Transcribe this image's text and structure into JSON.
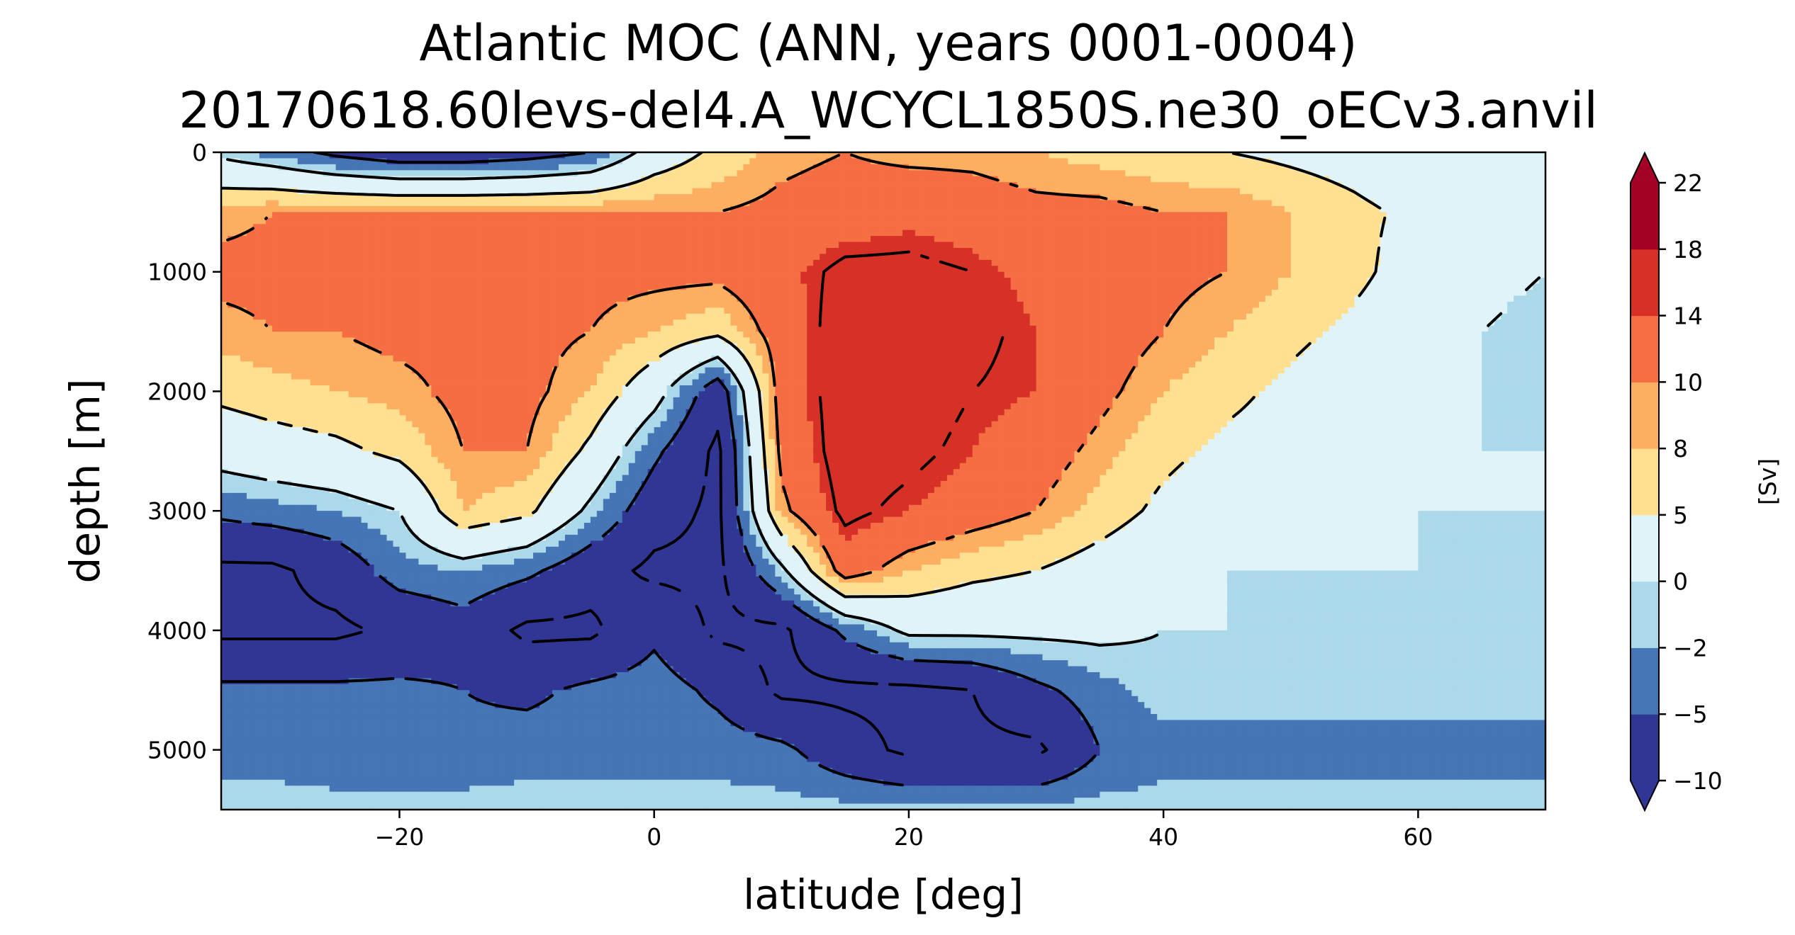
{
  "chart_data": {
    "type": "heatmap",
    "title": "Atlantic MOC (ANN, years 0001-0004)",
    "subtitle": "20170618.60levs-del4.A_WCYCL1850S.ne30_oECv3.anvil",
    "xlabel": "latitude [deg]",
    "ylabel": "depth [m]",
    "xlim": [
      -34,
      70
    ],
    "ylim": [
      5500,
      0
    ],
    "x_ticks": [
      -20,
      0,
      20,
      40,
      60
    ],
    "x_tick_labels": [
      "−20",
      "0",
      "20",
      "40",
      "60"
    ],
    "y_ticks": [
      0,
      1000,
      2000,
      3000,
      4000,
      5000
    ],
    "y_tick_labels": [
      "0",
      "1000",
      "2000",
      "3000",
      "4000",
      "5000"
    ],
    "colorbar": {
      "label": "[Sv]",
      "levels": [
        -10,
        -5,
        -2,
        0,
        5,
        8,
        10,
        14,
        18,
        22
      ],
      "tick_labels": [
        "−10",
        "−5",
        "−2",
        "0",
        "5",
        "8",
        "10",
        "14",
        "18",
        "22"
      ],
      "colors": [
        "#313695",
        "#4575b4",
        "#abd9e9",
        "#e0f3f8",
        "#fee090",
        "#fdae61",
        "#f46d43",
        "#d73027",
        "#a50026"
      ],
      "extend": "both"
    },
    "x": [
      -34,
      -30,
      -25,
      -20,
      -15,
      -10,
      -5,
      0,
      5,
      10,
      15,
      20,
      25,
      30,
      35,
      40,
      45,
      50,
      55,
      60,
      65,
      70
    ],
    "y": [
      0,
      500,
      1000,
      1500,
      2000,
      2500,
      3000,
      3500,
      4000,
      4500,
      5000,
      5500
    ],
    "values": [
      [
        -1,
        -3,
        -6,
        -8,
        -8,
        -7,
        -5,
        2,
        6,
        9,
        10,
        9,
        9,
        8,
        7,
        6,
        5,
        4,
        3,
        1,
        0,
        0
      ],
      [
        9,
        10,
        10,
        10,
        10,
        10,
        10,
        10,
        10,
        11,
        12,
        13,
        12,
        11,
        11,
        10,
        10,
        8,
        6,
        4,
        1,
        0
      ],
      [
        11,
        11,
        11,
        11,
        11,
        11,
        11,
        11,
        11,
        13,
        16,
        16,
        15,
        13,
        12,
        11,
        10,
        8,
        6,
        3,
        1,
        0
      ],
      [
        9,
        10,
        10,
        11,
        11,
        11,
        10,
        8,
        6,
        12,
        17,
        17,
        16,
        14,
        12,
        10,
        8,
        6,
        4,
        2,
        0,
        -1
      ],
      [
        6,
        7,
        8,
        9,
        11,
        11,
        8,
        2,
        -8,
        12,
        17,
        17,
        15,
        14,
        11,
        8,
        6,
        4,
        2,
        1,
        0,
        -1
      ],
      [
        2,
        3,
        4,
        6,
        10,
        10,
        4,
        -4,
        -11,
        11,
        17,
        16,
        14,
        12,
        9,
        6,
        4,
        3,
        1,
        0,
        0,
        0
      ],
      [
        -4,
        -3,
        -2,
        0,
        8,
        6,
        -1,
        -8,
        -11,
        9,
        16,
        14,
        12,
        10,
        7,
        4,
        2,
        1,
        0,
        0,
        0,
        0
      ],
      [
        -11,
        -11,
        -8,
        -3,
        -2,
        -4,
        -8,
        -11,
        -11,
        -1,
        12,
        8,
        6,
        5,
        3,
        1,
        0,
        0,
        0,
        0,
        -1,
        -1
      ],
      [
        -11,
        -11,
        -11,
        -9,
        -7,
        -11,
        -11,
        -6,
        -11,
        -11,
        -4,
        1,
        1,
        1,
        1,
        0,
        0,
        -1,
        -1,
        -1,
        -1,
        -1
      ],
      [
        -4,
        -4,
        -4,
        -4,
        -5,
        -6,
        -4,
        -3,
        -6,
        -11,
        -11,
        -11,
        -10,
        -6,
        -3,
        -1,
        -1,
        -1,
        -1,
        -1,
        -1,
        -1
      ],
      [
        -3,
        -3,
        -4,
        -4,
        -4,
        -3,
        -3,
        -3,
        -3,
        -4,
        -8,
        -11,
        -11,
        -11,
        -5,
        -3,
        -3,
        -3,
        -3,
        -3,
        -3,
        -3
      ],
      [
        -1,
        -1,
        -1,
        -1,
        -1,
        -1,
        -1,
        -1,
        -1,
        -1,
        -1,
        -1,
        -1,
        -1,
        -1,
        -1,
        -1,
        -1,
        -1,
        -1,
        -1,
        -1
      ]
    ],
    "grid": false
  }
}
